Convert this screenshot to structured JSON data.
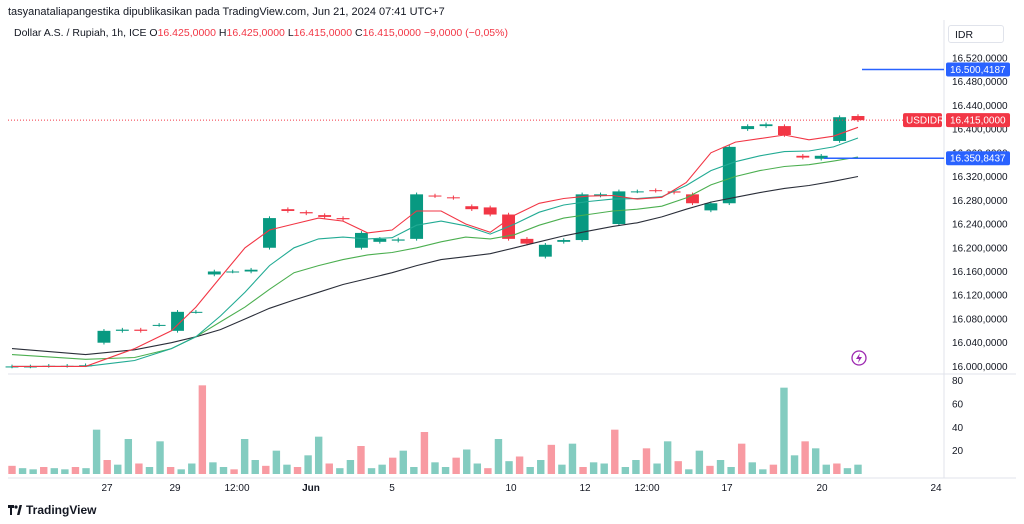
{
  "header": {
    "publisher_line": "tasyanataliapangestika dipublikasikan pada TradingView.com, Jun 21, 2024 07:41 UTC+7",
    "symbol": "Dollar A.S. / Rupiah, 1h, ICE",
    "o_key": "O",
    "o_val": "16.425,0000",
    "h_key": "H",
    "h_val": "16.425,0000",
    "l_key": "L",
    "l_val": "16.415,0000",
    "c_key": "C",
    "c_val": "16.415,0000",
    "change": "−9,0000 (−0,05%)"
  },
  "currency": "IDR",
  "brand": "TradingView",
  "chart_data": {
    "type": "candlestick",
    "price_axis_labels": [
      "16.520,0000",
      "16.480,0000",
      "16.440,0000",
      "16.400,0000",
      "16.360,0000",
      "16.320,0000",
      "16.280,0000",
      "16.240,0000",
      "16.200,0000",
      "16.160,0000",
      "16.120,0000",
      "16.080,0000",
      "16.040,0000",
      "16.000,0000"
    ],
    "price_ticks": [
      16520,
      16480,
      16440,
      16400,
      16360,
      16320,
      16280,
      16240,
      16200,
      16160,
      16120,
      16080,
      16040,
      16000
    ],
    "ylim": [
      15994,
      16540
    ],
    "volume_axis_labels": [
      "80",
      "60",
      "40",
      "20"
    ],
    "volume_ticks": [
      80,
      60,
      40,
      20
    ],
    "vlim": [
      0,
      84
    ],
    "time_axis_labels": [
      "27",
      "29",
      "12:00",
      "Jun",
      "5",
      "10",
      "12",
      "12:00",
      "17",
      "20",
      "24"
    ],
    "time_axis_bold": [
      "Jun"
    ],
    "last_price": {
      "symbol": "USDIDR",
      "value": 16415,
      "label": "16.415,0000"
    },
    "horizontal_lines": [
      {
        "value": 16500.4187,
        "label": "16.500,4187"
      },
      {
        "value": 16350.8437,
        "label": "16.350,8437"
      }
    ],
    "price_path": [
      [
        16000,
        16000
      ],
      [
        16000,
        16000
      ],
      [
        16001,
        16001
      ],
      [
        16001,
        16001
      ],
      [
        16002,
        16002
      ],
      [
        16040,
        16060
      ],
      [
        16060,
        16062
      ],
      [
        16062,
        16060
      ],
      [
        16070,
        16070
      ],
      [
        16060,
        16092
      ],
      [
        16092,
        16092
      ],
      [
        16155,
        16160
      ],
      [
        16160,
        16160
      ],
      [
        16160,
        16163
      ],
      [
        16200,
        16250
      ],
      [
        16265,
        16262
      ],
      [
        16260,
        16258
      ],
      [
        16255,
        16252
      ],
      [
        16250,
        16248
      ],
      [
        16200,
        16225
      ],
      [
        16210,
        16215
      ],
      [
        16212,
        16214
      ],
      [
        16215,
        16290
      ],
      [
        16288,
        16287
      ],
      [
        16285,
        16284
      ],
      [
        16270,
        16265
      ],
      [
        16268,
        16256
      ],
      [
        16256,
        16215
      ],
      [
        16215,
        16207
      ],
      [
        16185,
        16205
      ],
      [
        16210,
        16213
      ],
      [
        16213,
        16290
      ],
      [
        16288,
        16290
      ],
      [
        16240,
        16295
      ],
      [
        16295,
        16295
      ],
      [
        16297,
        16296
      ],
      [
        16295,
        16293
      ],
      [
        16290,
        16275
      ],
      [
        16263,
        16275
      ],
      [
        16275,
        16370
      ],
      [
        16400,
        16405
      ],
      [
        16405,
        16408
      ],
      [
        16405,
        16390
      ],
      [
        16355,
        16352
      ],
      [
        16350,
        16355
      ],
      [
        16380,
        16420
      ],
      [
        16422,
        16415
      ]
    ],
    "ema_red": [
      [
        0,
        16000
      ],
      [
        6,
        16000
      ],
      [
        10,
        16030
      ],
      [
        13,
        16060
      ],
      [
        15,
        16100
      ],
      [
        17,
        16150
      ],
      [
        19,
        16200
      ],
      [
        21,
        16230
      ],
      [
        23,
        16240
      ],
      [
        25,
        16250
      ],
      [
        27,
        16245
      ],
      [
        29,
        16225
      ],
      [
        31,
        16230
      ],
      [
        33,
        16262
      ],
      [
        35,
        16262
      ],
      [
        37,
        16240
      ],
      [
        39,
        16226
      ],
      [
        41,
        16255
      ],
      [
        43,
        16275
      ],
      [
        45,
        16283
      ],
      [
        47,
        16287
      ],
      [
        49,
        16288
      ],
      [
        51,
        16282
      ],
      [
        53,
        16285
      ],
      [
        55,
        16310
      ],
      [
        57,
        16360
      ],
      [
        59,
        16378
      ],
      [
        61,
        16384
      ],
      [
        63,
        16390
      ],
      [
        65,
        16382
      ],
      [
        67,
        16388
      ],
      [
        69,
        16403
      ]
    ],
    "ema_blue": [
      [
        0,
        16000
      ],
      [
        6,
        16000
      ],
      [
        10,
        16010
      ],
      [
        13,
        16030
      ],
      [
        15,
        16050
      ],
      [
        17,
        16085
      ],
      [
        19,
        16125
      ],
      [
        21,
        16170
      ],
      [
        23,
        16200
      ],
      [
        25,
        16215
      ],
      [
        27,
        16218
      ],
      [
        29,
        16215
      ],
      [
        31,
        16217
      ],
      [
        33,
        16238
      ],
      [
        35,
        16245
      ],
      [
        37,
        16237
      ],
      [
        39,
        16223
      ],
      [
        41,
        16240
      ],
      [
        43,
        16260
      ],
      [
        45,
        16272
      ],
      [
        47,
        16278
      ],
      [
        49,
        16282
      ],
      [
        51,
        16283
      ],
      [
        53,
        16286
      ],
      [
        55,
        16305
      ],
      [
        57,
        16330
      ],
      [
        59,
        16345
      ],
      [
        61,
        16355
      ],
      [
        63,
        16362
      ],
      [
        65,
        16363
      ],
      [
        67,
        16370
      ],
      [
        69,
        16385
      ]
    ],
    "ema_green": [
      [
        0,
        16020
      ],
      [
        6,
        16012
      ],
      [
        10,
        16015
      ],
      [
        13,
        16030
      ],
      [
        15,
        16050
      ],
      [
        17,
        16075
      ],
      [
        19,
        16100
      ],
      [
        21,
        16130
      ],
      [
        23,
        16158
      ],
      [
        25,
        16170
      ],
      [
        27,
        16180
      ],
      [
        29,
        16188
      ],
      [
        31,
        16192
      ],
      [
        33,
        16200
      ],
      [
        35,
        16210
      ],
      [
        37,
        16218
      ],
      [
        39,
        16215
      ],
      [
        41,
        16222
      ],
      [
        43,
        16238
      ],
      [
        45,
        16250
      ],
      [
        47,
        16256
      ],
      [
        49,
        16262
      ],
      [
        51,
        16265
      ],
      [
        53,
        16270
      ],
      [
        55,
        16284
      ],
      [
        57,
        16306
      ],
      [
        59,
        16320
      ],
      [
        61,
        16330
      ],
      [
        63,
        16337
      ],
      [
        65,
        16340
      ],
      [
        67,
        16346
      ],
      [
        69,
        16353
      ]
    ],
    "sma_black": [
      [
        0,
        16030
      ],
      [
        6,
        16020
      ],
      [
        10,
        16028
      ],
      [
        13,
        16040
      ],
      [
        15,
        16050
      ],
      [
        17,
        16062
      ],
      [
        19,
        16080
      ],
      [
        21,
        16098
      ],
      [
        23,
        16112
      ],
      [
        25,
        16125
      ],
      [
        27,
        16138
      ],
      [
        29,
        16148
      ],
      [
        31,
        16158
      ],
      [
        33,
        16170
      ],
      [
        35,
        16180
      ],
      [
        37,
        16185
      ],
      [
        39,
        16190
      ],
      [
        41,
        16200
      ],
      [
        43,
        16210
      ],
      [
        45,
        16220
      ],
      [
        47,
        16228
      ],
      [
        49,
        16236
      ],
      [
        51,
        16242
      ],
      [
        53,
        16252
      ],
      [
        55,
        16265
      ],
      [
        57,
        16277
      ],
      [
        59,
        16285
      ],
      [
        61,
        16293
      ],
      [
        63,
        16300
      ],
      [
        65,
        16305
      ],
      [
        67,
        16312
      ],
      [
        69,
        16320
      ]
    ],
    "volume": [
      7,
      5,
      4,
      6,
      5,
      4,
      6,
      5,
      38,
      12,
      8,
      30,
      9,
      6,
      28,
      6,
      4,
      9,
      76,
      10,
      6,
      4,
      30,
      12,
      7,
      20,
      8,
      6,
      16,
      32,
      9,
      5,
      12,
      24,
      5,
      8,
      14,
      20,
      6,
      36,
      10,
      6,
      14,
      21,
      9,
      5,
      30,
      11,
      15,
      6,
      12,
      25,
      8,
      26,
      6,
      10,
      9,
      38,
      6,
      12,
      22,
      9,
      28,
      11,
      4,
      20,
      7,
      12,
      6,
      26,
      10,
      4,
      8,
      74,
      16,
      28,
      22,
      8,
      9,
      5,
      8
    ]
  }
}
